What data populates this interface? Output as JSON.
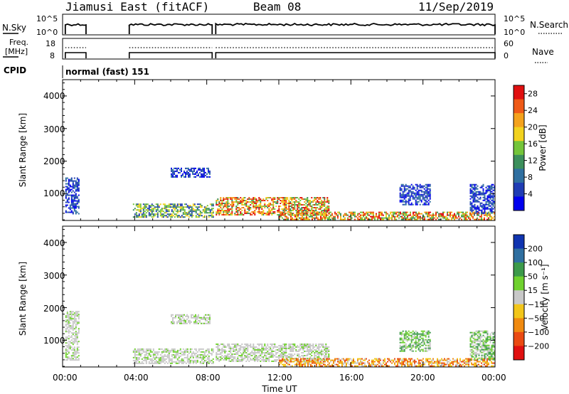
{
  "header": {
    "station": "Jiamusi East (fitACF)",
    "beam": "Beam 08",
    "date": "11/Sep/2019"
  },
  "status_panels": {
    "nsky_label": "N.Sky",
    "nsky_ticks": [
      "10^5",
      "10^0"
    ],
    "nsearch_label": "N.Search",
    "nsearch_ticks": [
      "10^5",
      "10^0"
    ],
    "freq_label": "Freq.",
    "freq_unit": "[MHz]",
    "freq_ticks": [
      "18",
      "8"
    ],
    "nave_label": "Nave",
    "nave_ticks": [
      "60",
      "0"
    ],
    "cpid_label": "CPID",
    "cpid_value": "normal (fast) 151"
  },
  "chart_data": [
    {
      "type": "heatmap",
      "name": "power",
      "ylabel": "Slant Range [km]",
      "ylim": [
        180,
        4500
      ],
      "yticks": [
        "1000",
        "2000",
        "3000",
        "4000"
      ],
      "xlim": [
        0,
        24
      ],
      "colorbar": {
        "label": "Power [dB]",
        "ticks": [
          "4",
          "8",
          "12",
          "16",
          "20",
          "24",
          "28"
        ],
        "range": [
          0,
          30
        ],
        "colors": [
          "#0000ee",
          "#1f3cb4",
          "#2f6fa0",
          "#3c8f5c",
          "#74c53a",
          "#f2d21e",
          "#f4a21c",
          "#ef5a17",
          "#e01010"
        ]
      },
      "echo_regions": [
        {
          "t": [
            0.15,
            0.9
          ],
          "r": [
            400,
            1500
          ],
          "level": "low"
        },
        {
          "t": [
            3.9,
            8.4
          ],
          "r": [
            300,
            700
          ],
          "level": "mid"
        },
        {
          "t": [
            6.0,
            8.2
          ],
          "r": [
            1500,
            1800
          ],
          "level": "low"
        },
        {
          "t": [
            8.5,
            14.8
          ],
          "r": [
            350,
            900
          ],
          "level": "high"
        },
        {
          "t": [
            12.0,
            24.0
          ],
          "r": [
            200,
            450
          ],
          "level": "high"
        },
        {
          "t": [
            18.7,
            20.4
          ],
          "r": [
            650,
            1300
          ],
          "level": "low"
        },
        {
          "t": [
            22.6,
            24.0
          ],
          "r": [
            400,
            1300
          ],
          "level": "low"
        }
      ]
    },
    {
      "type": "heatmap",
      "name": "velocity",
      "ylabel": "Slant Range [km]",
      "ylim": [
        180,
        4500
      ],
      "yticks": [
        "1000",
        "2000",
        "3000",
        "4000"
      ],
      "xlabel": "Time UT",
      "xticks": [
        "00:00",
        "04:00",
        "08:00",
        "12:00",
        "16:00",
        "20:00",
        "00:00"
      ],
      "xlim": [
        0,
        24
      ],
      "colorbar": {
        "label": "Velocity [m s⁻¹]",
        "ticks": [
          "200",
          "100",
          "50",
          "15",
          "−15",
          "−50",
          "−100",
          "−200"
        ],
        "colors": [
          "#1034b0",
          "#2f6fa0",
          "#3c9a4a",
          "#6fd12e",
          "#c8c8c8",
          "#f2c61a",
          "#f08a10",
          "#ea4a12",
          "#e01010"
        ]
      },
      "echo_regions": [
        {
          "t": [
            0.15,
            0.9
          ],
          "r": [
            400,
            1900
          ],
          "level": "grey"
        },
        {
          "t": [
            3.9,
            8.4
          ],
          "r": [
            300,
            750
          ],
          "level": "grey"
        },
        {
          "t": [
            6.0,
            8.2
          ],
          "r": [
            1500,
            1800
          ],
          "level": "grey"
        },
        {
          "t": [
            8.5,
            14.8
          ],
          "r": [
            350,
            900
          ],
          "level": "grey"
        },
        {
          "t": [
            12.0,
            24.0
          ],
          "r": [
            200,
            450
          ],
          "level": "orange"
        },
        {
          "t": [
            18.7,
            20.4
          ],
          "r": [
            650,
            1300
          ],
          "level": "green"
        },
        {
          "t": [
            22.6,
            24.0
          ],
          "r": [
            400,
            1300
          ],
          "level": "green"
        }
      ]
    }
  ]
}
